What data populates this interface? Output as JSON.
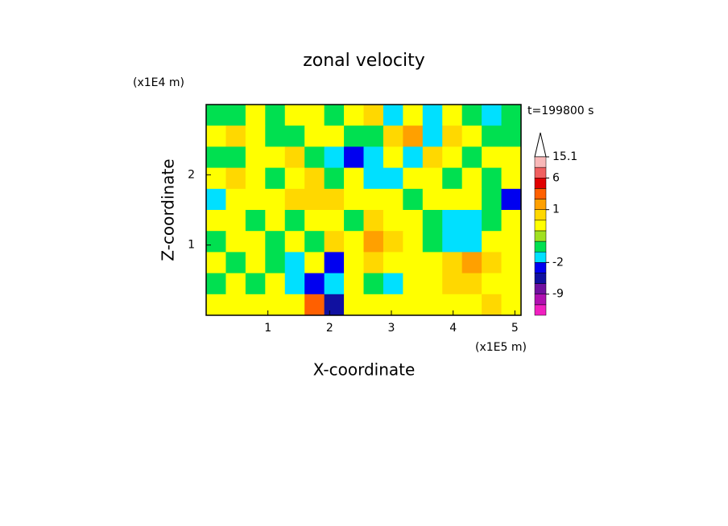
{
  "chart_data": {
    "type": "contour",
    "title": "zonal velocity",
    "time_label": "t=199800 s",
    "x_label": "X-coordinate",
    "y_label": "Z-coordinate",
    "x_unit": "(x1E5 m)",
    "y_unit": "(x1E4 m)",
    "xlim": [
      0,
      5.1
    ],
    "ylim": [
      0,
      3
    ],
    "xticks": [
      1,
      2,
      3,
      4,
      5
    ],
    "yticks": [
      1,
      2
    ],
    "levels": [
      -15,
      -12,
      -9,
      -6,
      -3,
      -2,
      -1,
      -0.5,
      0,
      0.5,
      1,
      2,
      4,
      6,
      10,
      15.1
    ],
    "level_colors": [
      "#f020c0",
      "#b010b0",
      "#7010a0",
      "#1010a0",
      "#0000f0",
      "#00e0ff",
      "#00e050",
      "#a0e020",
      "#ffff00",
      "#ffd800",
      "#ffa000",
      "#ff6000",
      "#e00000",
      "#f06060",
      "#f8b8b8"
    ],
    "colorbar_ticks": [
      15.1,
      6,
      1,
      -2,
      -9
    ],
    "z": [
      [
        -0.7,
        -0.7,
        0.2,
        -0.7,
        0.2,
        0.2,
        -0.7,
        0.2,
        0.7,
        -1.5,
        0.2,
        -1.5,
        0.2,
        -0.7,
        -1.5,
        -0.7
      ],
      [
        0.2,
        0.7,
        0.2,
        -0.7,
        -0.7,
        0.2,
        0.2,
        -0.7,
        -0.7,
        0.7,
        1.5,
        -1.5,
        0.7,
        0.2,
        -0.7,
        -0.7
      ],
      [
        -0.7,
        -0.7,
        0.2,
        0.2,
        0.7,
        -0.7,
        -1.5,
        -2.5,
        -1.5,
        0.2,
        -1.5,
        0.7,
        0.2,
        -0.7,
        0.2,
        0.2
      ],
      [
        0.2,
        0.7,
        0.2,
        -0.7,
        0.2,
        0.7,
        -0.7,
        0.2,
        -1.5,
        -1.5,
        0.2,
        0.2,
        -0.7,
        0.2,
        -0.7,
        0.2
      ],
      [
        -1.5,
        0.2,
        0.2,
        0.2,
        0.7,
        0.7,
        0.7,
        0.2,
        0.2,
        0.2,
        -0.7,
        0.2,
        0.2,
        0.2,
        -0.7,
        -2.5
      ],
      [
        0.2,
        0.2,
        -0.7,
        0.2,
        -0.7,
        0.2,
        0.2,
        -0.7,
        0.7,
        0.2,
        0.2,
        -0.7,
        -1.5,
        -1.5,
        -0.7,
        0.2
      ],
      [
        -0.7,
        0.2,
        0.2,
        -0.7,
        0.2,
        -0.7,
        0.7,
        0.2,
        1.5,
        0.7,
        0.2,
        -0.7,
        -1.5,
        -1.5,
        0.2,
        0.2
      ],
      [
        0.2,
        -0.7,
        0.2,
        -0.7,
        -1.5,
        0.2,
        -2.5,
        0.2,
        0.7,
        0.2,
        0.2,
        0.2,
        0.7,
        1.5,
        0.7,
        0.2
      ],
      [
        -0.7,
        0.2,
        -0.7,
        0.2,
        -1.5,
        -2.5,
        -1.5,
        0.2,
        -0.7,
        -1.5,
        0.2,
        0.2,
        0.7,
        0.7,
        0.2,
        0.2
      ],
      [
        0.2,
        0.2,
        0.2,
        0.2,
        0.2,
        3,
        -5,
        0.2,
        0.2,
        0.2,
        0.2,
        0.2,
        0.2,
        0.2,
        0.7,
        0.2
      ]
    ]
  }
}
